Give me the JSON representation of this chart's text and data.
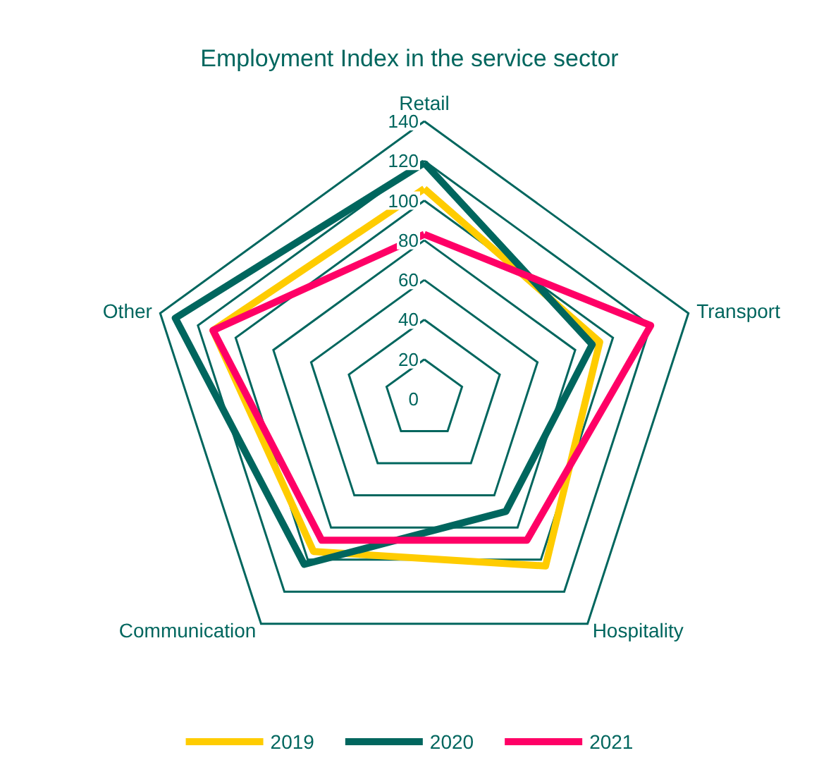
{
  "chart_data": {
    "type": "radar",
    "title": "Employment Index in the service sector",
    "categories": [
      "Retail",
      "Transport",
      "Hospitality",
      "Communication",
      "Other"
    ],
    "ylim": [
      0,
      140
    ],
    "yticks": [
      0,
      20,
      40,
      60,
      80,
      100,
      120,
      140
    ],
    "grid": true,
    "legend": "bottom",
    "marker": "none",
    "series": [
      {
        "name": "2019",
        "color": "#ffcc00",
        "values": [
          106,
          93,
          104,
          95,
          112
        ]
      },
      {
        "name": "2020",
        "color": "#00665e",
        "values": [
          119,
          89,
          70,
          103,
          132
        ]
      },
      {
        "name": "2021",
        "color": "#ff0066",
        "values": [
          83,
          120,
          88,
          88,
          112
        ]
      }
    ]
  }
}
